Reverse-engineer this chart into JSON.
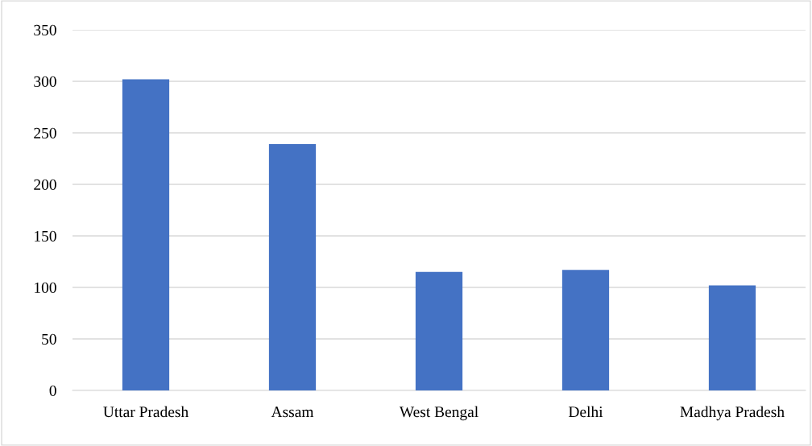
{
  "chart_data": {
    "type": "bar",
    "categories": [
      "Uttar Pradesh",
      "Assam",
      "West Bengal",
      "Delhi",
      "Madhya Pradesh"
    ],
    "values": [
      302,
      239,
      115,
      117,
      102
    ],
    "color": "#4472c4",
    "ylim": [
      0,
      350
    ],
    "yticks": [
      0,
      50,
      100,
      150,
      200,
      250,
      300,
      350
    ],
    "grid": "y"
  }
}
